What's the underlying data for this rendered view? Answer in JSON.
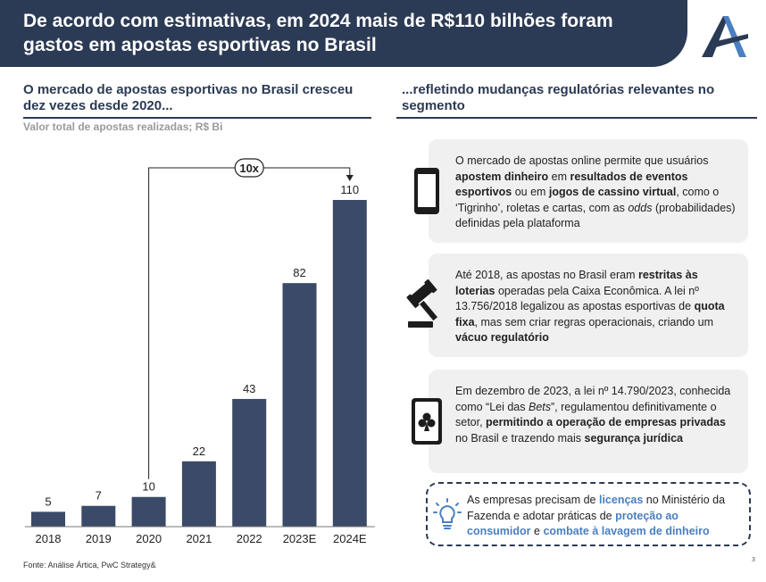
{
  "header": {
    "title": "De acordo com estimativas, em 2024 mais de R$110 bilhões foram gastos em apostas esportivas no Brasil"
  },
  "left": {
    "subtitle": "O mercado de apostas esportivas no Brasil cresceu dez vezes desde 2020...",
    "caption": "Valor total de apostas realizadas; R$ Bi"
  },
  "right": {
    "subtitle": "...refletindo mudanças regulatórias relevantes no segmento"
  },
  "chart_data": {
    "type": "bar",
    "categories": [
      "2018",
      "2019",
      "2020",
      "2021",
      "2022",
      "2023E",
      "2024E"
    ],
    "values": [
      5,
      7,
      10,
      22,
      43,
      82,
      110
    ],
    "title": "Valor total de apostas realizadas; R$ Bi",
    "xlabel": "",
    "ylabel": "R$ Bi",
    "ylim": [
      0,
      110
    ],
    "annotation": {
      "label": "10x",
      "from": "2020",
      "to": "2024E"
    },
    "bar_color": "#3b4a68"
  },
  "cards": [
    {
      "icon": "smartphone-icon",
      "segments": [
        {
          "t": "O mercado de apostas online permite que usuários ",
          "s": ""
        },
        {
          "t": "apostem dinheiro",
          "s": "b"
        },
        {
          "t": " em ",
          "s": ""
        },
        {
          "t": "resultados de eventos esportivos",
          "s": "b"
        },
        {
          "t": " ou em ",
          "s": ""
        },
        {
          "t": "jogos de cassino virtual",
          "s": "b"
        },
        {
          "t": ", como o ‘Tigrinho’, roletas e cartas, com as ",
          "s": ""
        },
        {
          "t": "odds",
          "s": "i"
        },
        {
          "t": " (probabilidades) definidas pela plataforma",
          "s": ""
        }
      ]
    },
    {
      "icon": "gavel-icon",
      "segments": [
        {
          "t": "Até 2018, as apostas no Brasil eram ",
          "s": ""
        },
        {
          "t": "restritas às loterias",
          "s": "b"
        },
        {
          "t": " operadas pela Caixa Econômica. A lei nº 13.756/2018 legalizou as apostas esportivas de ",
          "s": ""
        },
        {
          "t": "quota fixa",
          "s": "b"
        },
        {
          "t": ", mas sem criar regras operacionais, criando um ",
          "s": ""
        },
        {
          "t": "vácuo regulatório",
          "s": "b"
        }
      ]
    },
    {
      "icon": "playing-card-icon",
      "segments": [
        {
          "t": "Em dezembro de 2023, a lei nº 14.790/2023, conhecida como “Lei das ",
          "s": ""
        },
        {
          "t": "Bets",
          "s": "i"
        },
        {
          "t": "”, regulamentou definitivamente o setor, ",
          "s": ""
        },
        {
          "t": "permitindo a operação de empresas privadas",
          "s": "b"
        },
        {
          "t": " no Brasil e trazendo mais ",
          "s": ""
        },
        {
          "t": "segurança jurídica",
          "s": "b"
        }
      ]
    }
  ],
  "callout": {
    "icon": "lightbulb-icon",
    "segments": [
      {
        "t": "As empresas precisam de ",
        "s": ""
      },
      {
        "t": "licenças",
        "s": "hl"
      },
      {
        "t": " no Ministério da Fazenda e adotar práticas de ",
        "s": ""
      },
      {
        "t": "proteção ao consumidor",
        "s": "hl"
      },
      {
        "t": " e ",
        "s": ""
      },
      {
        "t": "combate à lavagem de dinheiro",
        "s": "hl"
      }
    ]
  },
  "footer": {
    "source": "Fonte: Análise Ártica, PwC Strategy&",
    "page": "3"
  },
  "colors": {
    "navy": "#2b3a55",
    "bar": "#3b4a68",
    "highlight": "#4a7fc1",
    "card_bg": "#f0f0f0"
  }
}
